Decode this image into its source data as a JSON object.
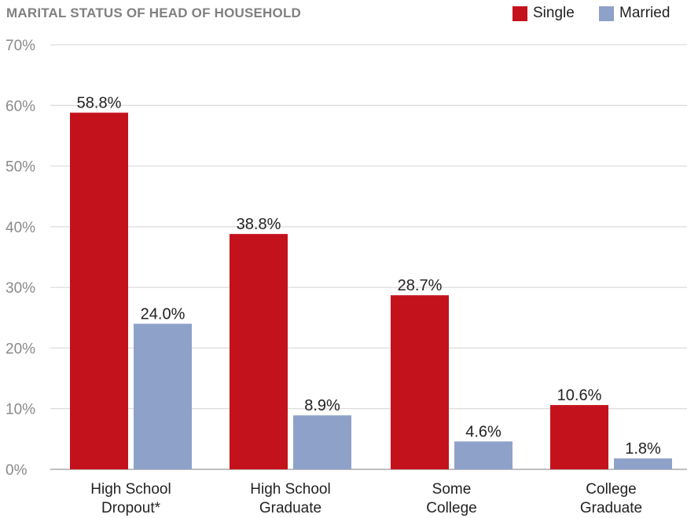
{
  "chart_data": {
    "type": "bar",
    "title": "MARITAL STATUS OF HEAD OF HOUSEHOLD",
    "categories": [
      [
        "High School",
        "Dropout*"
      ],
      [
        "High School",
        "Graduate"
      ],
      [
        "Some",
        "College"
      ],
      [
        "College",
        "Graduate"
      ]
    ],
    "series": [
      {
        "name": "Single",
        "color": "#c4121c",
        "values": [
          58.8,
          38.8,
          28.7,
          10.6
        ],
        "labels": [
          "58.8%",
          "38.8%",
          "28.7%",
          "10.6%"
        ]
      },
      {
        "name": "Married",
        "color": "#8ea1c8",
        "values": [
          24.0,
          8.9,
          4.6,
          1.8
        ],
        "labels": [
          "24.0%",
          "8.9%",
          "4.6%",
          "1.8%"
        ]
      }
    ],
    "yticks": [
      "0%",
      "10%",
      "20%",
      "30%",
      "40%",
      "50%",
      "60%",
      "70%"
    ],
    "ylim": [
      0,
      70
    ],
    "grid": true,
    "legend_position": "top-right"
  }
}
